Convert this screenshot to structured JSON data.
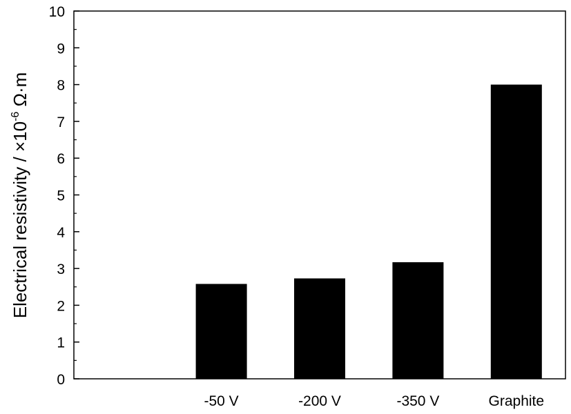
{
  "chart_data": {
    "type": "bar",
    "categories": [
      "-50 V",
      "-200 V",
      "-350 V",
      "Graphite"
    ],
    "values": [
      2.58,
      2.73,
      3.17,
      8.0
    ],
    "ylabel": {
      "main": "Electrical resistivity / ×10",
      "exponent": "-6",
      "unit": " Ω·m"
    },
    "xlabel": "",
    "ylim": [
      0,
      10
    ],
    "yticks": [
      0,
      1,
      2,
      3,
      4,
      5,
      6,
      7,
      8,
      9,
      10
    ],
    "grid": false,
    "bar_color": "#000000"
  }
}
